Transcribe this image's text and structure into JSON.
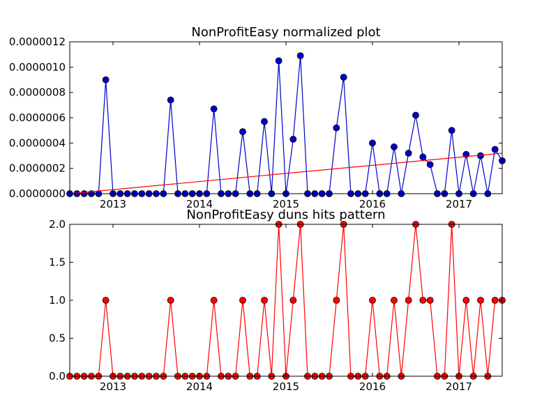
{
  "chart_data": [
    {
      "type": "line",
      "title": "NonProfitEasy normalized plot",
      "xlabel": "",
      "ylabel": "",
      "xlim": [
        "2012-07",
        "2017-07"
      ],
      "ylim": [
        0,
        1.2e-06
      ],
      "x_tick_labels": [
        "2013",
        "2014",
        "2015",
        "2016",
        "2017"
      ],
      "y_tick_labels": [
        "0.0000000",
        "0.0000002",
        "0.0000004",
        "0.0000006",
        "0.0000008",
        "0.0000010",
        "0.0000012"
      ],
      "grid": false,
      "x": [
        "2012-07",
        "2012-08",
        "2012-09",
        "2012-10",
        "2012-11",
        "2012-12",
        "2013-01",
        "2013-02",
        "2013-03",
        "2013-04",
        "2013-05",
        "2013-06",
        "2013-07",
        "2013-08",
        "2013-09",
        "2013-10",
        "2013-11",
        "2013-12",
        "2014-01",
        "2014-02",
        "2014-03",
        "2014-04",
        "2014-05",
        "2014-06",
        "2014-07",
        "2014-08",
        "2014-09",
        "2014-10",
        "2014-11",
        "2014-12",
        "2015-01",
        "2015-02",
        "2015-03",
        "2015-04",
        "2015-05",
        "2015-06",
        "2015-07",
        "2015-08",
        "2015-09",
        "2015-10",
        "2015-11",
        "2015-12",
        "2016-01",
        "2016-02",
        "2016-03",
        "2016-04",
        "2016-05",
        "2016-06",
        "2016-07",
        "2016-08",
        "2016-09",
        "2016-10",
        "2016-11",
        "2016-12",
        "2017-01",
        "2017-02",
        "2017-03",
        "2017-04",
        "2017-05",
        "2017-06",
        "2017-07"
      ],
      "series": [
        {
          "color": "#0000cc",
          "marker": "circle",
          "values": [
            0,
            0,
            0,
            0,
            0,
            9e-07,
            0,
            0,
            0,
            0,
            0,
            0,
            0,
            0,
            7.4e-07,
            0,
            0,
            0,
            0,
            0,
            6.7e-07,
            0,
            0,
            0,
            4.9e-07,
            0,
            0,
            5.7e-07,
            0,
            1.05e-06,
            0,
            4.3e-07,
            1.09e-06,
            0,
            0,
            0,
            0,
            5.2e-07,
            9.2e-07,
            0,
            0,
            0,
            4e-07,
            0,
            0,
            3.7e-07,
            0,
            3.2e-07,
            6.2e-07,
            2.9e-07,
            2.3e-07,
            0,
            0,
            5e-07,
            0,
            3.1e-07,
            0,
            3e-07,
            0,
            3.5e-07,
            2.6e-07
          ]
        },
        {
          "color": "#ff0000",
          "marker": "none",
          "trend_line": true,
          "values_at_xlim": [
            0,
            3.2e-07
          ]
        }
      ]
    },
    {
      "type": "line",
      "title": "NonProfitEasy duns hits pattern",
      "xlabel": "",
      "ylabel": "",
      "xlim": [
        "2012-07",
        "2017-07"
      ],
      "ylim": [
        0,
        2.0
      ],
      "x_tick_labels": [
        "2013",
        "2014",
        "2015",
        "2016",
        "2017"
      ],
      "y_tick_labels": [
        "0.0",
        "0.5",
        "1.0",
        "1.5",
        "2.0"
      ],
      "grid": false,
      "x": [
        "2012-07",
        "2012-08",
        "2012-09",
        "2012-10",
        "2012-11",
        "2012-12",
        "2013-01",
        "2013-02",
        "2013-03",
        "2013-04",
        "2013-05",
        "2013-06",
        "2013-07",
        "2013-08",
        "2013-09",
        "2013-10",
        "2013-11",
        "2013-12",
        "2014-01",
        "2014-02",
        "2014-03",
        "2014-04",
        "2014-05",
        "2014-06",
        "2014-07",
        "2014-08",
        "2014-09",
        "2014-10",
        "2014-11",
        "2014-12",
        "2015-01",
        "2015-02",
        "2015-03",
        "2015-04",
        "2015-05",
        "2015-06",
        "2015-07",
        "2015-08",
        "2015-09",
        "2015-10",
        "2015-11",
        "2015-12",
        "2016-01",
        "2016-02",
        "2016-03",
        "2016-04",
        "2016-05",
        "2016-06",
        "2016-07",
        "2016-08",
        "2016-09",
        "2016-10",
        "2016-11",
        "2016-12",
        "2017-01",
        "2017-02",
        "2017-03",
        "2017-04",
        "2017-05",
        "2017-06",
        "2017-07"
      ],
      "series": [
        {
          "color": "#ff0000",
          "marker": "circle",
          "values": [
            0,
            0,
            0,
            0,
            0,
            1,
            0,
            0,
            0,
            0,
            0,
            0,
            0,
            0,
            1,
            0,
            0,
            0,
            0,
            0,
            1,
            0,
            0,
            0,
            1,
            0,
            0,
            1,
            0,
            2,
            0,
            1,
            2,
            0,
            0,
            0,
            0,
            1,
            2,
            0,
            0,
            0,
            1,
            0,
            0,
            1,
            0,
            1,
            2,
            1,
            1,
            0,
            0,
            2,
            0,
            1,
            0,
            1,
            0,
            1,
            1
          ]
        }
      ]
    }
  ]
}
